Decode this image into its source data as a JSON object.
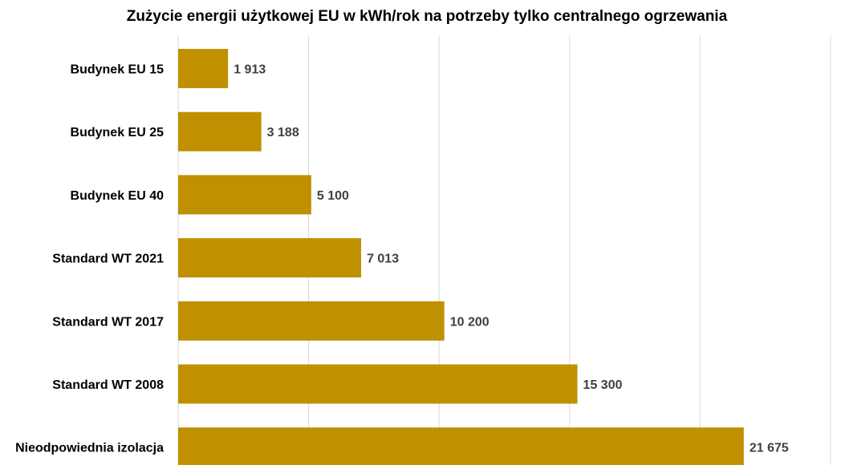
{
  "chart_data": {
    "type": "bar",
    "orientation": "horizontal",
    "title": "Zużycie energii użytkowej EU w kWh/rok na potrzeby tylko centralnego ogrzewania",
    "categories": [
      "Budynek EU 15",
      "Budynek EU 25",
      "Budynek EU 40",
      "Standard WT 2021",
      "Standard WT 2017",
      "Standard WT 2008",
      "Nieodpowiednia izolacja"
    ],
    "values": [
      1913,
      3188,
      5100,
      7013,
      10200,
      15300,
      21675
    ],
    "value_labels": [
      "1 913",
      "3 188",
      "5 100",
      "7 013",
      "10 200",
      "15 300",
      "21 675"
    ],
    "xlim": [
      0,
      25000
    ],
    "grid": true,
    "bar_color": "#BF9000",
    "label_color": "#404040",
    "grid_color": "#D9D9D9"
  }
}
